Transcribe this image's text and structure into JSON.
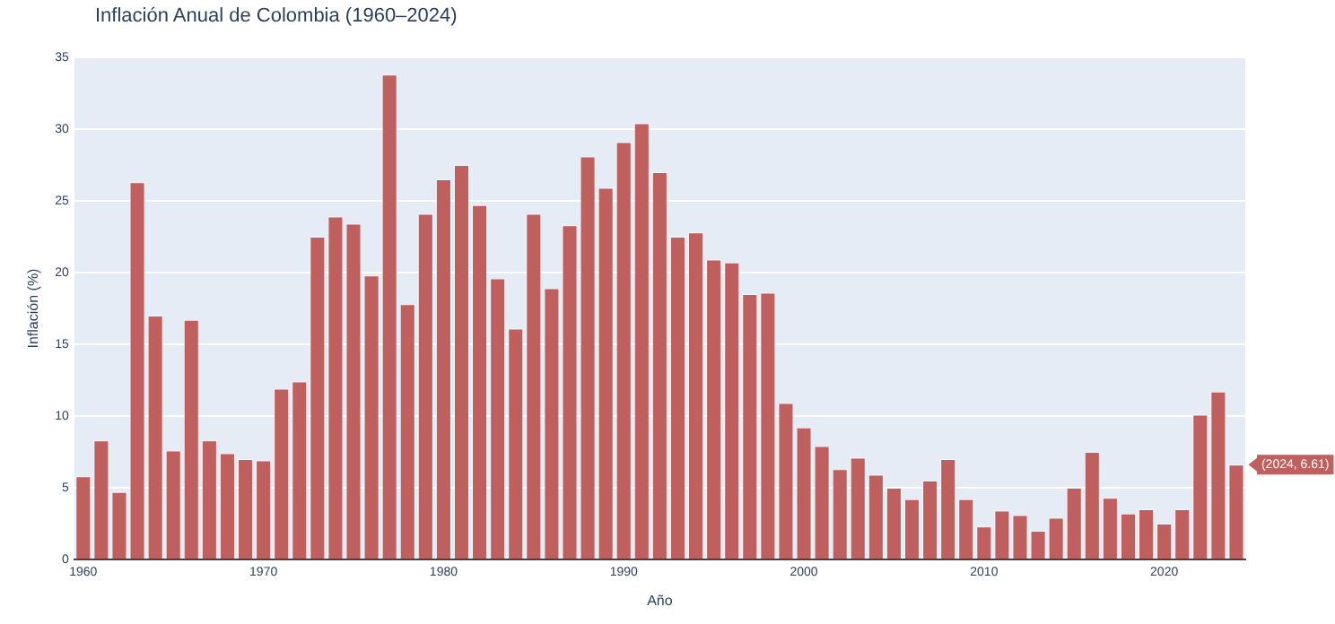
{
  "chart_data": {
    "type": "bar",
    "title": "Inflación Anual de Colombia (1960–2024)",
    "xlabel": "Año",
    "ylabel": "Inflación (%)",
    "x": [
      1960,
      1961,
      1962,
      1963,
      1964,
      1965,
      1966,
      1967,
      1968,
      1969,
      1970,
      1971,
      1972,
      1973,
      1974,
      1975,
      1976,
      1977,
      1978,
      1979,
      1980,
      1981,
      1982,
      1983,
      1984,
      1985,
      1986,
      1987,
      1988,
      1989,
      1990,
      1991,
      1992,
      1993,
      1994,
      1995,
      1996,
      1997,
      1998,
      1999,
      2000,
      2001,
      2002,
      2003,
      2004,
      2005,
      2006,
      2007,
      2008,
      2009,
      2010,
      2011,
      2012,
      2013,
      2014,
      2015,
      2016,
      2017,
      2018,
      2019,
      2020,
      2021,
      2022,
      2023,
      2024
    ],
    "values": [
      5.8,
      8.3,
      4.7,
      26.3,
      17.0,
      7.6,
      16.7,
      8.3,
      7.4,
      7.0,
      6.9,
      11.9,
      12.4,
      22.5,
      23.9,
      23.4,
      19.8,
      33.8,
      17.8,
      24.1,
      26.5,
      27.5,
      24.7,
      19.6,
      16.1,
      24.1,
      18.9,
      23.3,
      28.1,
      25.9,
      29.1,
      30.4,
      27.0,
      22.5,
      22.8,
      20.9,
      20.7,
      18.5,
      18.6,
      10.9,
      9.2,
      7.9,
      6.3,
      7.1,
      5.9,
      5.0,
      4.2,
      5.5,
      7.0,
      4.2,
      2.3,
      3.4,
      3.1,
      2.0,
      2.9,
      5.0,
      7.5,
      4.3,
      3.2,
      3.5,
      2.5,
      3.5,
      10.1,
      11.7,
      6.61
    ],
    "color": "#c0605e",
    "xlim": [
      1959.5,
      2024.5
    ],
    "xticks": [
      1960,
      1970,
      1980,
      1990,
      2000,
      2010,
      2020
    ],
    "ylim": [
      0,
      35
    ],
    "yticks": [
      0,
      5,
      10,
      15,
      20,
      25,
      30,
      35
    ],
    "grid": "y",
    "annotations": [
      {
        "text": "(2024, 6.61)",
        "x": 2024,
        "y": 6.61
      }
    ]
  }
}
